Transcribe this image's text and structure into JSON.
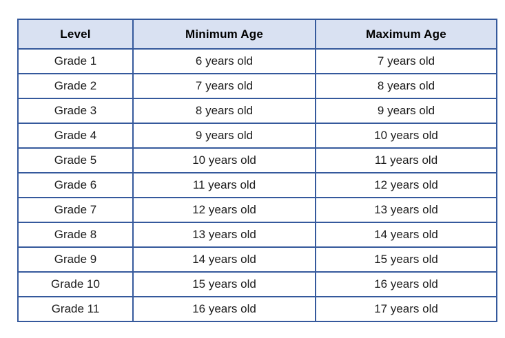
{
  "colors": {
    "table_border": "#35599c",
    "header_bg": "#d9e1f2",
    "header_text": "#000000",
    "body_text": "#1c1c1c",
    "page_bg": "#ffffff"
  },
  "chart_data": {
    "type": "table",
    "columns": [
      "Level",
      "Minimum Age",
      "Maximum Age"
    ],
    "rows": [
      [
        "Grade 1",
        "6 years old",
        "7 years old"
      ],
      [
        "Grade 2",
        "7 years old",
        "8 years old"
      ],
      [
        "Grade 3",
        "8 years old",
        "9 years old"
      ],
      [
        "Grade 4",
        "9 years old",
        "10 years old"
      ],
      [
        "Grade 5",
        "10 years old",
        "11 years old"
      ],
      [
        "Grade 6",
        "11 years old",
        "12 years old"
      ],
      [
        "Grade 7",
        "12 years old",
        "13 years old"
      ],
      [
        "Grade 8",
        "13 years old",
        "14 years old"
      ],
      [
        "Grade 9",
        "14 years old",
        "15 years old"
      ],
      [
        "Grade 10",
        "15 years old",
        "16 years old"
      ],
      [
        "Grade 11",
        "16 years old",
        "17 years old"
      ]
    ],
    "layout": {
      "grid": true,
      "header_row": true
    }
  }
}
